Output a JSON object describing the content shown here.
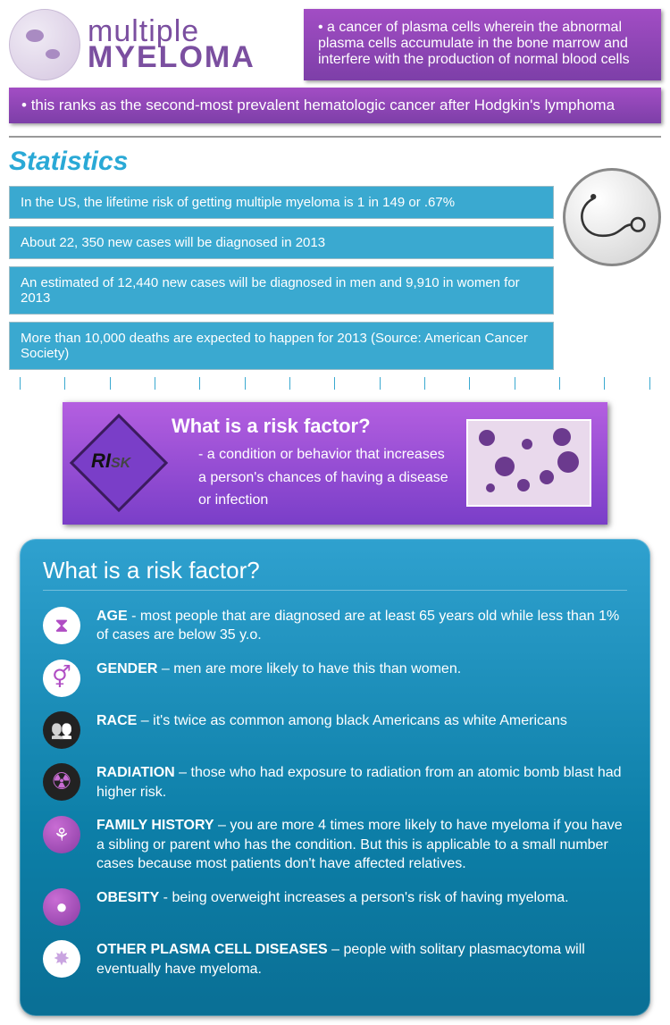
{
  "header": {
    "logo_top": "multiple",
    "logo_bottom": "MYELOMA",
    "definition": "a cancer of plasma cells wherein the abnormal plasma cells accumulate in the bone marrow and interfere with the production of normal blood cells",
    "rank_text": "this ranks as the second-most prevalent hematologic cancer after Hodgkin's lymphoma"
  },
  "colors": {
    "purple_grad_top": "#a24dc4",
    "purple_grad_bot": "#7d3fa8",
    "cyan_bar": "#3aa9d0",
    "cyan_title": "#2aa9d6",
    "panel_grad_top": "#2fa1cf",
    "panel_grad_bot": "#0a6f95"
  },
  "stats": {
    "title": "Statistics",
    "items": [
      "In the US, the lifetime risk of getting multiple myeloma is 1 in 149 or .67%",
      "About 22, 350 new cases will be diagnosed in 2013",
      "An estimated of 12,440 new cases will be diagnosed in men and 9,910 in women for 2013",
      "More than 10,000 deaths are expected to happen for 2013 (Source: American Cancer Society)"
    ],
    "tick_count": 15
  },
  "risk_def": {
    "badge_big": "RI",
    "badge_small": "SK",
    "title": "What is a risk factor?",
    "text": "- a condition or behavior that increases a person's chances of having a disease or infection"
  },
  "factors": {
    "title": "What is a risk factor?",
    "items": [
      {
        "icon": "hourglass-icon",
        "icon_bg": "white",
        "glyph": "gl-hourglass",
        "label": "AGE",
        "text": " -  most people that are diagnosed are at least 65 years old while less than 1% of cases are below 35 y.o."
      },
      {
        "icon": "gender-icon",
        "icon_bg": "white",
        "glyph": "gl-gender",
        "label": "GENDER",
        "text": " – men are more likely to have this than women."
      },
      {
        "icon": "race-icon",
        "icon_bg": "dark",
        "glyph": "gl-people",
        "label": "RACE",
        "text": " – it's twice as common among black Americans as white Americans"
      },
      {
        "icon": "radiation-icon",
        "icon_bg": "dark",
        "glyph": "gl-rad",
        "label": "RADIATION",
        "text": " – those who had exposure to radiation from an atomic bomb blast had higher risk."
      },
      {
        "icon": "family-icon",
        "icon_bg": "purple",
        "glyph": "gl-fam",
        "label": "FAMILY HISTORY",
        "text": " – you are more 4 times more likely to have myeloma if you have a sibling or parent who has the condition. But this is applicable to a small number cases because most patients don't have affected relatives."
      },
      {
        "icon": "obesity-icon",
        "icon_bg": "purple",
        "glyph": "gl-ob",
        "label": "OBESITY",
        "text": " -  being overweight increases a person's risk of having myeloma."
      },
      {
        "icon": "plasma-icon",
        "icon_bg": "white",
        "glyph": "gl-cell",
        "label": "OTHER PLASMA CELL DISEASES",
        "text": " – people with solitary plasmacytoma will eventually have myeloma."
      }
    ]
  }
}
